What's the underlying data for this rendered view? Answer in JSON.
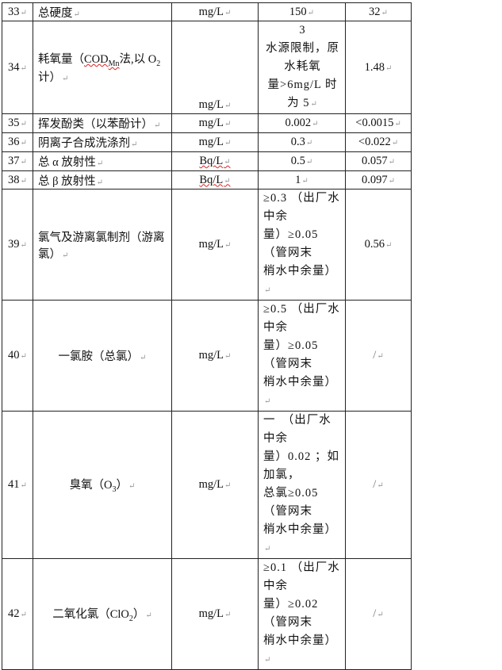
{
  "rows": [
    {
      "no": "33",
      "name": "总硬度",
      "unit": "mg/L",
      "limit": "150",
      "result": "32"
    },
    {
      "no": "34",
      "name_parts": [
        "耗氧量（",
        "COD",
        "Mn",
        "法,以 O",
        "2",
        " 计）"
      ],
      "unit": "mg/L",
      "limit_lines": [
        "3",
        "水源限制，原水耗氧",
        "量>6mg/L 时为 5"
      ],
      "result": "1.48"
    },
    {
      "no": "35",
      "name": "挥发酚类（以苯酚计）",
      "unit": "mg/L",
      "limit": "0.002",
      "result": "<0.0015"
    },
    {
      "no": "36",
      "name": "阴离子合成洗涤剂",
      "unit": "mg/L",
      "limit": "0.3",
      "result": "<0.022"
    },
    {
      "no": "37",
      "name": "总 α 放射性",
      "unit": "Bq/L",
      "limit": "0.5",
      "result": "0.057"
    },
    {
      "no": "38",
      "name": "总 β 放射性",
      "unit": "Bq/L",
      "limit": "1",
      "result": "0.097"
    },
    {
      "no": "39",
      "name": "氯气及游离氯制剂（游离氯）",
      "unit": "mg/L",
      "limit_lines": [
        "≥0.3 （出厂水中余",
        "量）≥0.05（管网末",
        "梢水中余量）"
      ],
      "result": "0.56"
    },
    {
      "no": "40",
      "name": "一氯胺（总氯）",
      "unit": "mg/L",
      "limit_lines": [
        "≥0.5 （出厂水中余",
        "量）≥0.05（管网末",
        "梢水中余量）"
      ],
      "result": "/"
    },
    {
      "no": "41",
      "name_parts": [
        "臭氧（O",
        "3",
        "）"
      ],
      "unit": "mg/L",
      "limit_lines": [
        "一　（出厂水中余",
        "量）0.02 ；如加氯，",
        "总氯≥0.05（管网末",
        "梢水中余量）"
      ],
      "result": "/"
    },
    {
      "no": "42",
      "name_parts": [
        "二氧化氯（ClO",
        "2",
        "）"
      ],
      "unit": "mg/L",
      "limit_lines": [
        "≥0.1 （出厂水中余",
        "量）≥0.02（管网末",
        "梢水中余量）"
      ],
      "result": "/"
    }
  ]
}
